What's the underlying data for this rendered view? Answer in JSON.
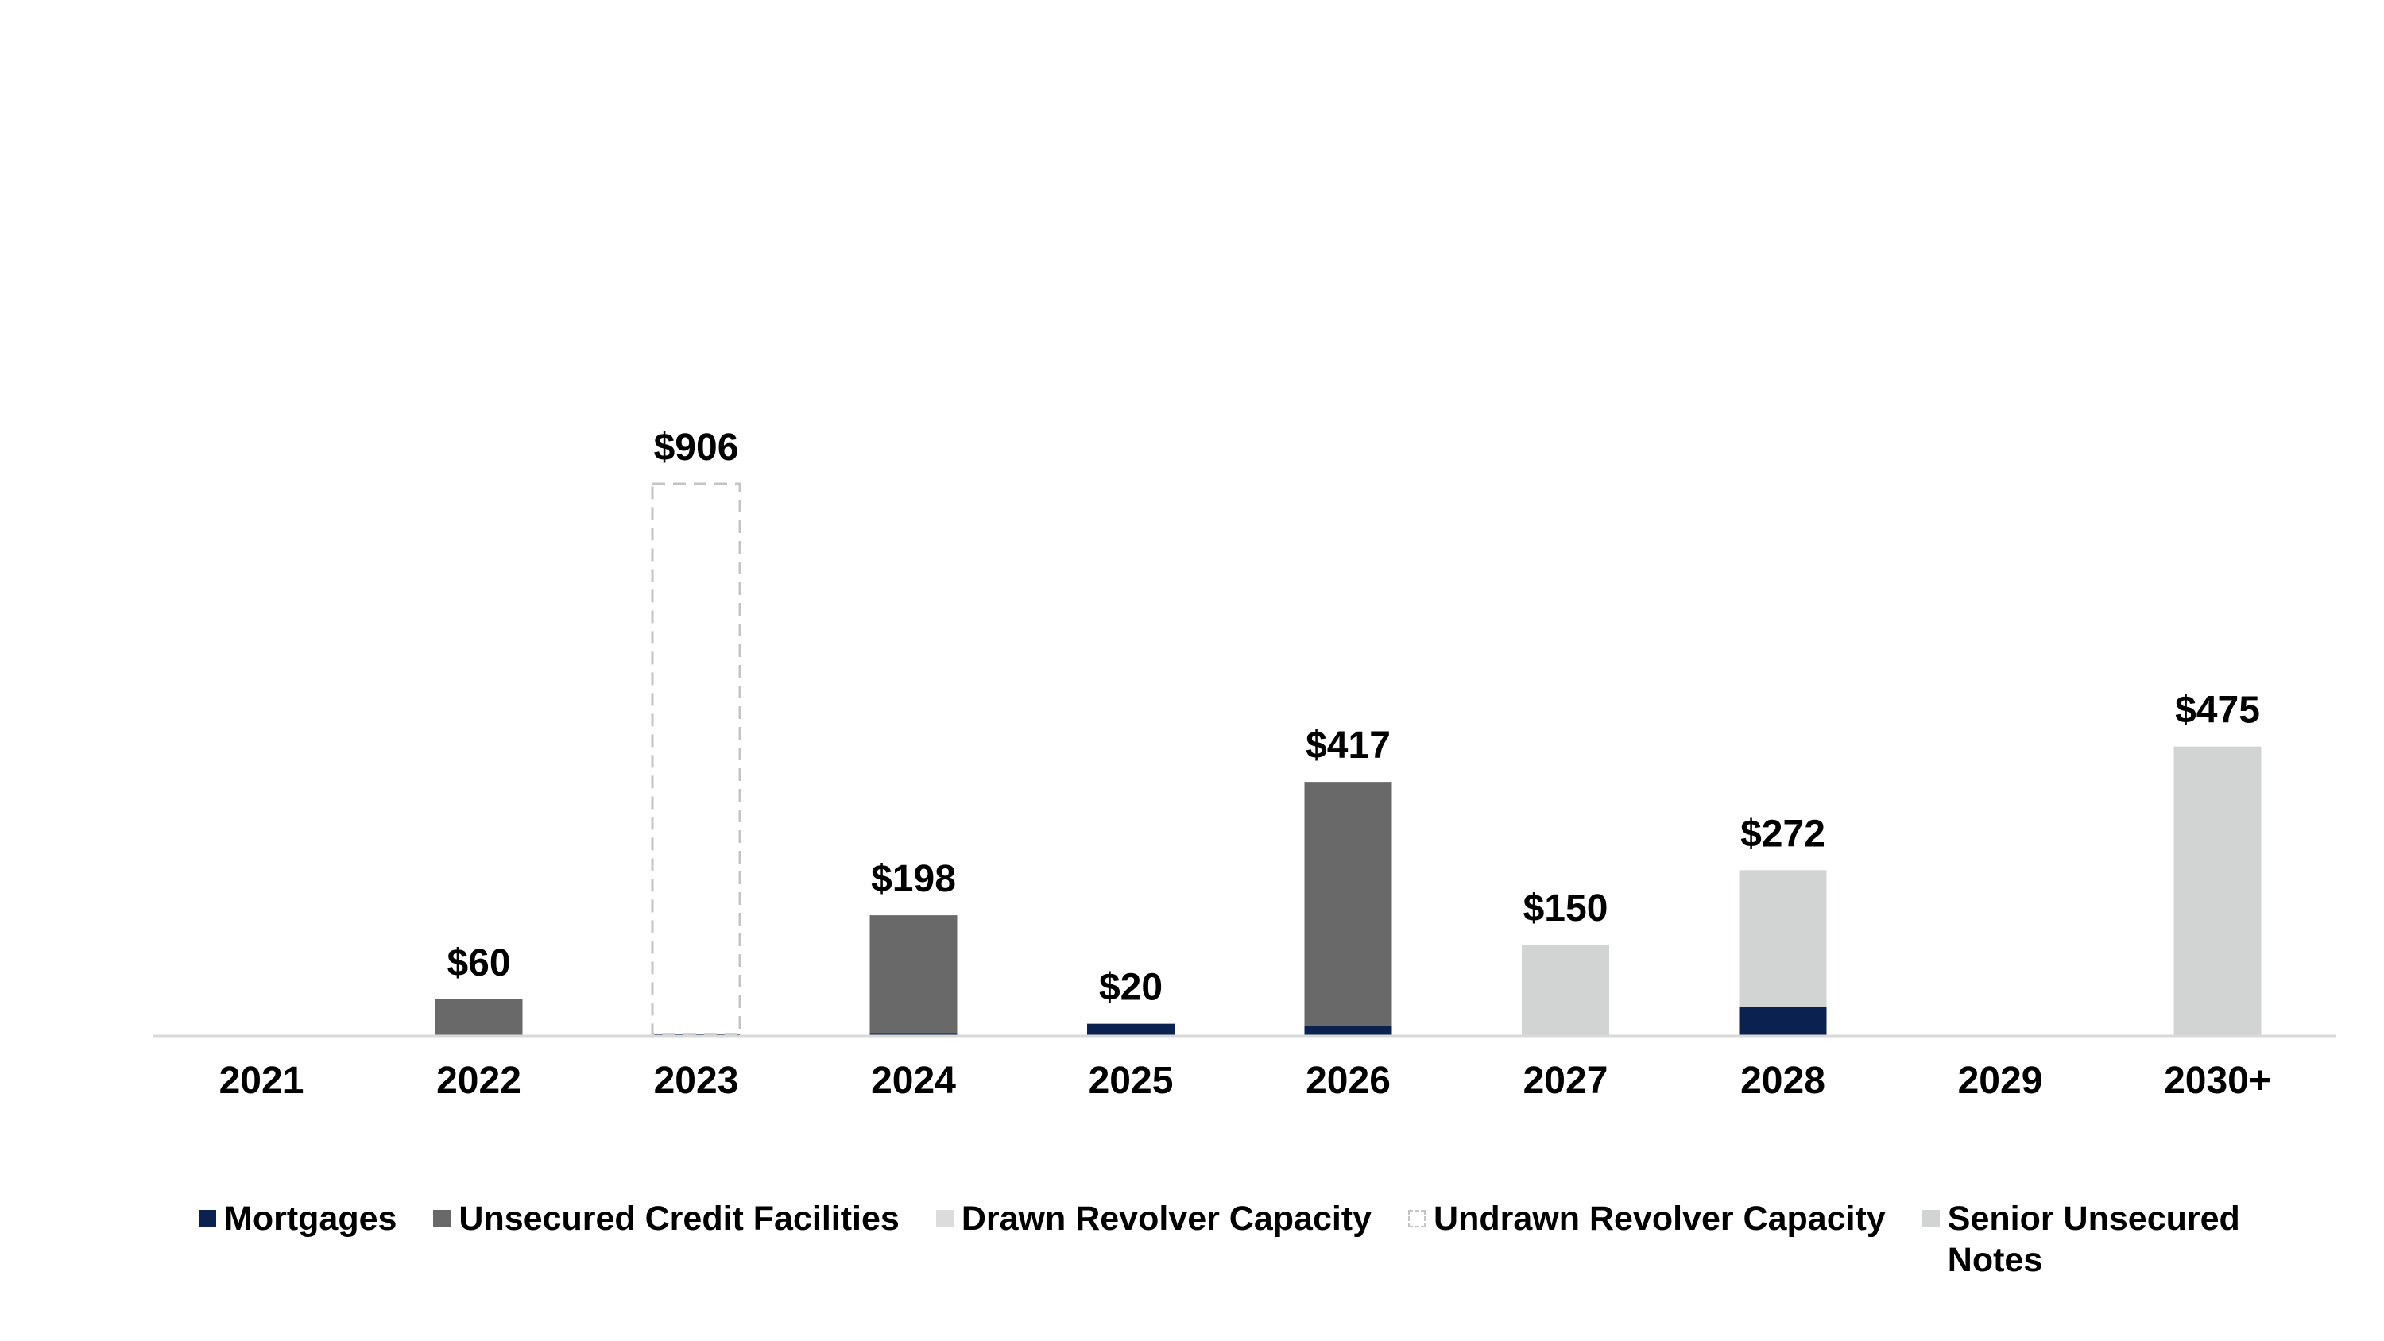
{
  "chart_data": {
    "type": "bar",
    "stacked": true,
    "title": "",
    "xlabel": "",
    "ylabel": "",
    "ylim": [
      0,
      1700
    ],
    "grid": false,
    "legend_position": "bottom",
    "categories": [
      "2021",
      "2022",
      "2023",
      "2024",
      "2025",
      "2026",
      "2027",
      "2028",
      "2029",
      "2030+"
    ],
    "totals": [
      "",
      "$60",
      "$906",
      "$198",
      "$20",
      "$417",
      "$150",
      "$272",
      "",
      "$475"
    ],
    "series": [
      {
        "name": "Mortgages",
        "color": "#0b2251",
        "values": [
          0,
          0,
          3,
          5,
          20,
          16,
          0,
          47,
          0,
          0
        ]
      },
      {
        "name": "Unsecured Credit Facilities",
        "color": "#696969",
        "values": [
          0,
          60,
          0,
          193,
          0,
          401,
          0,
          0,
          0,
          0
        ]
      },
      {
        "name": "Drawn Revolver Capacity",
        "color": "#dcdcdc",
        "values": [
          0,
          0,
          0,
          0,
          0,
          0,
          0,
          0,
          0,
          0
        ]
      },
      {
        "name": "Undrawn Revolver Capacity",
        "color": "#ffffff",
        "border": "#c4c4c4",
        "dashed": true,
        "values": [
          0,
          0,
          903,
          0,
          0,
          0,
          0,
          0,
          0,
          0
        ]
      },
      {
        "name": "Senior Unsecured Notes",
        "color": "#d2d3d3",
        "values": [
          0,
          0,
          0,
          0,
          0,
          0,
          150,
          225,
          0,
          475
        ]
      }
    ]
  }
}
